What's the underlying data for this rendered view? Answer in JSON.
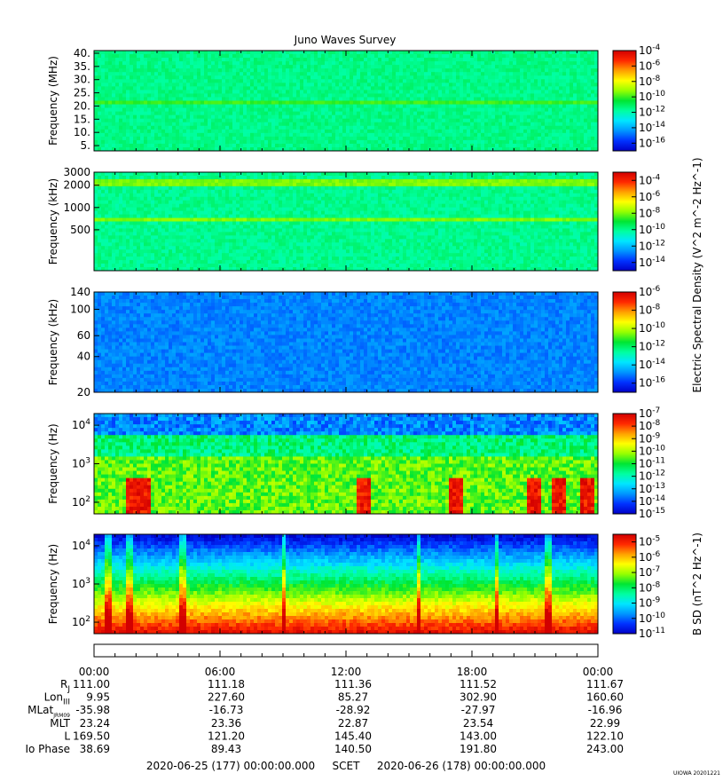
{
  "title": "Juno Waves Survey",
  "colors": {
    "colormap": [
      "#0000c8",
      "#0032ff",
      "#0096ff",
      "#00e6ff",
      "#00ffa0",
      "#00e632",
      "#96ff00",
      "#ffff00",
      "#ffa000",
      "#ff2800",
      "#d20000"
    ]
  },
  "chart_data": [
    {
      "type": "heatmap",
      "panel": "hfwbr",
      "ylabel": "Frequency (MHz)",
      "ylim": [
        3,
        41
      ],
      "yticks": [
        5,
        10,
        15,
        20,
        25,
        30,
        35,
        40
      ],
      "ytick_labels": [
        "5.",
        "10.",
        "15.",
        "20.",
        "25.",
        "30.",
        "35.",
        "40."
      ],
      "colorbar_ticks": [
        "10^-4",
        "10^-6",
        "10^-8",
        "10^-10",
        "10^-12",
        "10^-14",
        "10^-16"
      ],
      "clim_exp": [
        -17,
        -4
      ],
      "background_level": -11.5,
      "bands": [
        {
          "freq": 21.5,
          "level": -10
        }
      ]
    },
    {
      "type": "heatmap",
      "panel": "hfr_low",
      "ylabel": "Frequency (kHz)",
      "yscale": "log",
      "ylim": [
        140,
        3000
      ],
      "ytick_labels": [
        "3000",
        "2000",
        "1000",
        "500"
      ],
      "colorbar_ticks": [
        "10^-4",
        "10^-6",
        "10^-8",
        "10^-10",
        "10^-12",
        "10^-14"
      ],
      "clim_exp": [
        -15,
        -3
      ],
      "background_level": -10,
      "bands": [
        {
          "freq": 2200,
          "level": -8
        },
        {
          "freq": 680,
          "level": -8
        }
      ]
    },
    {
      "type": "heatmap",
      "panel": "lfr_high",
      "ylabel": "Frequency (kHz)",
      "yscale": "log",
      "ylim": [
        20,
        140
      ],
      "ytick_labels": [
        "140",
        "100",
        "60",
        "40",
        "20"
      ],
      "colorbar_ticks": [
        "10^-6",
        "10^-8",
        "10^-10",
        "10^-12",
        "10^-14",
        "10^-16"
      ],
      "clim_exp": [
        -17,
        -6
      ],
      "background_level": -15
    },
    {
      "type": "heatmap",
      "panel": "lfr_e",
      "ylabel": "Frequency (Hz)",
      "yscale": "log",
      "ylim": [
        50,
        20000
      ],
      "ytick_labels": [
        "10^4",
        "10^3",
        "10^2"
      ],
      "colorbar_ticks": [
        "10^-7",
        "10^-8",
        "10^-9",
        "10^-10",
        "10^-11",
        "10^-12",
        "10^-13",
        "10^-14",
        "10^-15"
      ],
      "clim_exp": [
        -15,
        -7
      ],
      "colorbar_label_shared": "Electric Spectral Density (V^2 m^-2 Hz^-1)",
      "band_levels": [
        {
          "above_hz": 5000,
          "level": -13.5
        },
        {
          "above_hz": 1500,
          "level": -11.5
        },
        {
          "above_hz": 0,
          "level": -10.5
        }
      ],
      "bursts_hours": [
        1.9,
        2.1,
        2.3,
        12.8,
        17.3,
        21.0,
        22.2,
        23.5
      ]
    },
    {
      "type": "heatmap",
      "panel": "lfr_b",
      "ylabel": "Frequency (Hz)",
      "yscale": "log",
      "ylim": [
        50,
        20000
      ],
      "ytick_labels": [
        "10^4",
        "10^3",
        "10^2"
      ],
      "colorbar_ticks": [
        "10^-5",
        "10^-6",
        "10^-7",
        "10^-8",
        "10^-9",
        "10^-10",
        "10^-11"
      ],
      "clim_exp": [
        -11,
        -4.5
      ],
      "colorbar_label": "B SD (nT^2 Hz^-1)",
      "bursts_hours": [
        0.7,
        1.6,
        1.8,
        4.2,
        9.0,
        15.5,
        19.2,
        21.6
      ]
    }
  ],
  "xaxis": {
    "xlim_hours": [
      0,
      24
    ],
    "tick_hours": [
      0,
      6,
      12,
      18,
      24
    ],
    "tick_labels": [
      "00:00",
      "06:00",
      "12:00",
      "18:00",
      "00:00"
    ]
  },
  "ephemeris": {
    "rows": [
      {
        "label": "R",
        "sub": "J",
        "values": [
          "111.00",
          "111.18",
          "111.36",
          "111.52",
          "111.67"
        ]
      },
      {
        "label": "Lon",
        "sub": "III",
        "values": [
          "9.95",
          "227.60",
          "85.27",
          "302.90",
          "160.60"
        ]
      },
      {
        "label": "MLat",
        "sub": "JRM09",
        "values": [
          "-35.98",
          "-16.73",
          "-28.92",
          "-27.97",
          "-16.96"
        ]
      },
      {
        "label": "MLT",
        "sub": "",
        "values": [
          "23.24",
          "23.36",
          "22.87",
          "23.54",
          "22.99"
        ]
      },
      {
        "label": "L",
        "sub": "",
        "values": [
          "169.50",
          "121.20",
          "145.40",
          "143.00",
          "122.10"
        ]
      },
      {
        "label": "Io Phase",
        "sub": "",
        "values": [
          "38.69",
          "89.43",
          "140.50",
          "191.80",
          "243.00"
        ]
      }
    ]
  },
  "footer": {
    "start": "2020-06-25 (177) 00:00:00.000",
    "scet": "SCET",
    "end": "2020-06-26 (178) 00:00:00.000",
    "credit": "UIOWA 20201221"
  }
}
